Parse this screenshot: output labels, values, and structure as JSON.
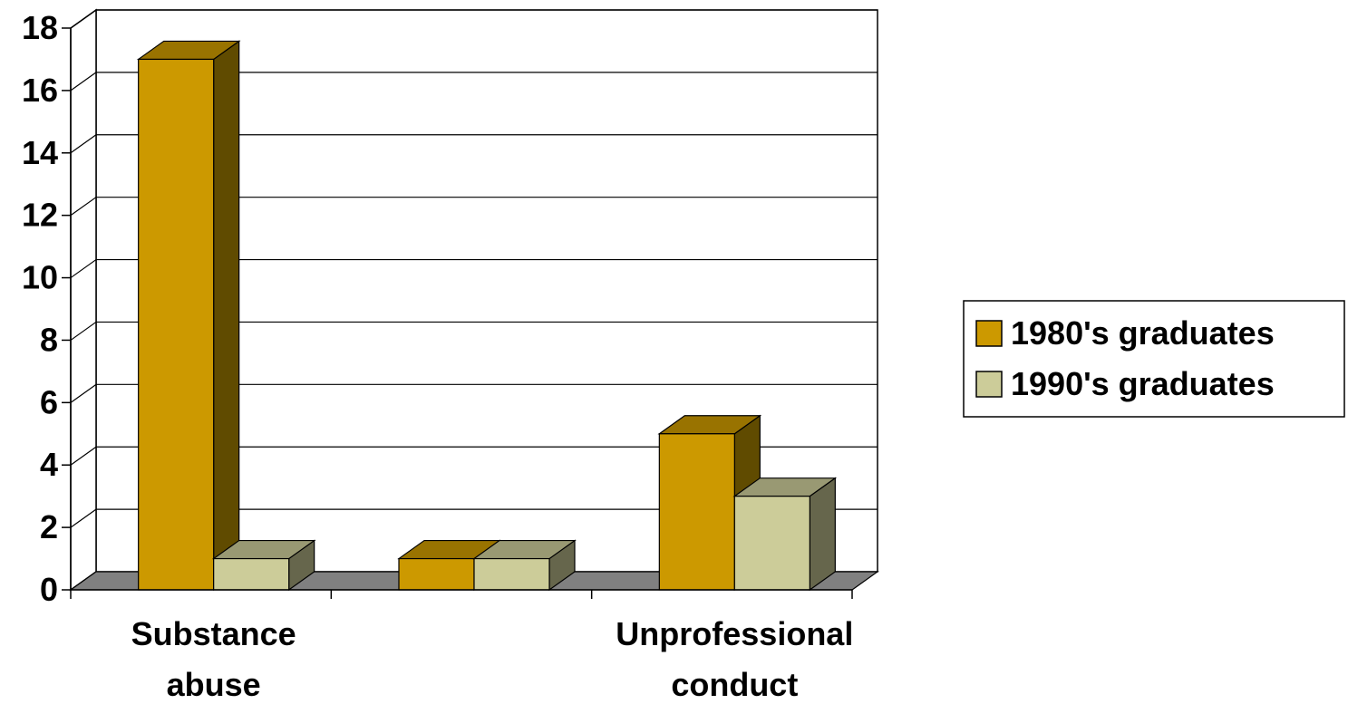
{
  "chart_data": {
    "type": "bar",
    "categories": [
      [
        "Substance",
        "abuse"
      ],
      [
        "",
        ""
      ],
      [
        "Unprofessional",
        "conduct"
      ]
    ],
    "series": [
      {
        "name": "1980's graduates",
        "values": [
          17,
          1,
          5
        ]
      },
      {
        "name": "1990's graduates",
        "values": [
          1,
          1,
          3
        ]
      }
    ],
    "ylim": [
      0,
      18
    ],
    "yticks": [
      0,
      2,
      4,
      6,
      8,
      10,
      12,
      14,
      16,
      18
    ],
    "grid": true,
    "legend": "right",
    "three_d": true,
    "colors": {
      "series0": {
        "front": "#CC9900",
        "top": "#997300",
        "side": "#604B00"
      },
      "series1": {
        "front": "#CCCC99",
        "top": "#999973",
        "side": "#66664C"
      },
      "floor": "#808080",
      "wall": "#ffffff"
    }
  }
}
